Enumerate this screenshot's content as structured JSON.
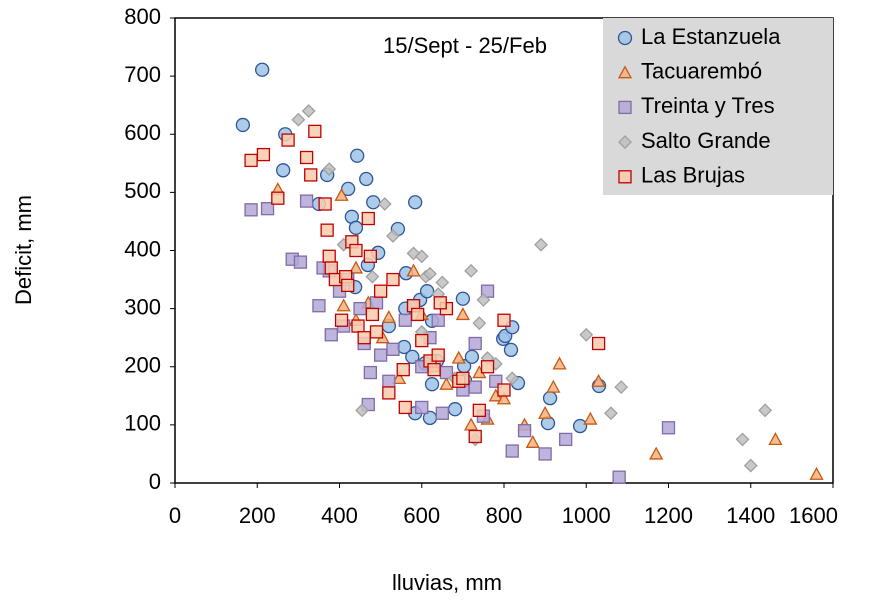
{
  "chart_data": {
    "type": "scatter",
    "annotation": "15/Sept - 25/Feb",
    "x_label": "lluvias, mm",
    "y_label": "Deficit, mm",
    "xlim": [
      0,
      1600
    ],
    "ylim": [
      0,
      800
    ],
    "xticks": [
      0,
      200,
      400,
      600,
      800,
      1000,
      1200,
      1400,
      1600
    ],
    "yticks": [
      0,
      100,
      200,
      300,
      400,
      500,
      600,
      700,
      800
    ],
    "grid": false,
    "legend_position": "upper right",
    "series": [
      {
        "name": "La Estanzuela",
        "color": "#9dc3e6",
        "edge": "#2f5597",
        "marker": "circle",
        "x": [
          165,
          212,
          268,
          263,
          370,
          421,
          443,
          465,
          482,
          584,
          430,
          440,
          542,
          494,
          469,
          438,
          562,
          596,
          613,
          625,
          637,
          557,
          577,
          608,
          625,
          620,
          584,
          703,
          705,
          798,
          803,
          820,
          817,
          834,
          912,
          907,
          985,
          1031,
          700,
          722,
          681,
          350,
          520,
          560
        ],
        "values": [
          616,
          711,
          600,
          538,
          530,
          506,
          563,
          523,
          483,
          483,
          458,
          439,
          437,
          396,
          375,
          337,
          361,
          315,
          330,
          279,
          210,
          234,
          217,
          206,
          170,
          112,
          120,
          201,
          177,
          248,
          253,
          268,
          229,
          172,
          146,
          103,
          98,
          167,
          317,
          217,
          127,
          480,
          270,
          300
        ]
      },
      {
        "name": "Tacuarembó",
        "color": "#f4b183",
        "edge": "#c55a11",
        "marker": "triangle",
        "x": [
          250,
          405,
          440,
          470,
          410,
          520,
          505,
          545,
          580,
          600,
          630,
          690,
          700,
          720,
          760,
          780,
          800,
          850,
          870,
          900,
          920,
          935,
          1010,
          1030,
          1170,
          1460,
          1560,
          660,
          740,
          440
        ],
        "values": [
          505,
          495,
          370,
          310,
          305,
          285,
          250,
          180,
          365,
          290,
          200,
          215,
          290,
          100,
          110,
          150,
          145,
          100,
          70,
          120,
          165,
          205,
          110,
          175,
          50,
          75,
          15,
          170,
          190,
          280
        ]
      },
      {
        "name": "Treinta y Tres",
        "color": "#b4a7d6",
        "edge": "#7f6ca8",
        "marker": "square",
        "x": [
          185,
          225,
          285,
          305,
          320,
          350,
          375,
          380,
          400,
          410,
          420,
          450,
          460,
          470,
          475,
          490,
          520,
          530,
          560,
          580,
          600,
          620,
          650,
          640,
          660,
          700,
          730,
          750,
          760,
          780,
          820,
          850,
          900,
          950,
          1080,
          1200,
          730,
          600,
          500,
          360
        ],
        "values": [
          470,
          472,
          385,
          380,
          485,
          305,
          365,
          255,
          330,
          270,
          350,
          300,
          240,
          135,
          190,
          310,
          175,
          230,
          280,
          305,
          130,
          250,
          120,
          280,
          190,
          160,
          240,
          115,
          330,
          175,
          55,
          90,
          50,
          75,
          10,
          95,
          165,
          200,
          220,
          370
        ]
      },
      {
        "name": "Salto Grande",
        "color": "#bfbfbf",
        "edge": "#a0a0a0",
        "marker": "diamond",
        "x": [
          300,
          325,
          375,
          410,
          455,
          510,
          530,
          580,
          600,
          610,
          620,
          640,
          650,
          720,
          730,
          740,
          750,
          780,
          820,
          890,
          1000,
          1060,
          1085,
          1380,
          1400,
          1435,
          600,
          680,
          760,
          480
        ],
        "values": [
          625,
          640,
          540,
          410,
          125,
          480,
          425,
          395,
          260,
          355,
          360,
          325,
          345,
          365,
          75,
          275,
          315,
          205,
          180,
          410,
          255,
          120,
          165,
          75,
          30,
          125,
          390,
          180,
          215,
          355
        ]
      },
      {
        "name": "Las Brujas",
        "color": "#f8cbad",
        "edge": "#c00000",
        "marker": "square",
        "x": [
          185,
          215,
          250,
          275,
          320,
          330,
          340,
          365,
          370,
          375,
          380,
          390,
          405,
          415,
          430,
          440,
          445,
          470,
          475,
          480,
          490,
          500,
          520,
          530,
          555,
          560,
          580,
          600,
          620,
          630,
          640,
          660,
          690,
          700,
          730,
          740,
          760,
          800,
          800,
          1030,
          590,
          645,
          460,
          420
        ],
        "values": [
          555,
          565,
          490,
          590,
          560,
          530,
          605,
          480,
          435,
          390,
          370,
          350,
          280,
          355,
          415,
          400,
          270,
          455,
          390,
          290,
          260,
          330,
          155,
          350,
          195,
          130,
          305,
          245,
          210,
          195,
          220,
          300,
          175,
          180,
          80,
          125,
          200,
          280,
          160,
          240,
          290,
          310,
          250,
          340
        ]
      }
    ]
  }
}
